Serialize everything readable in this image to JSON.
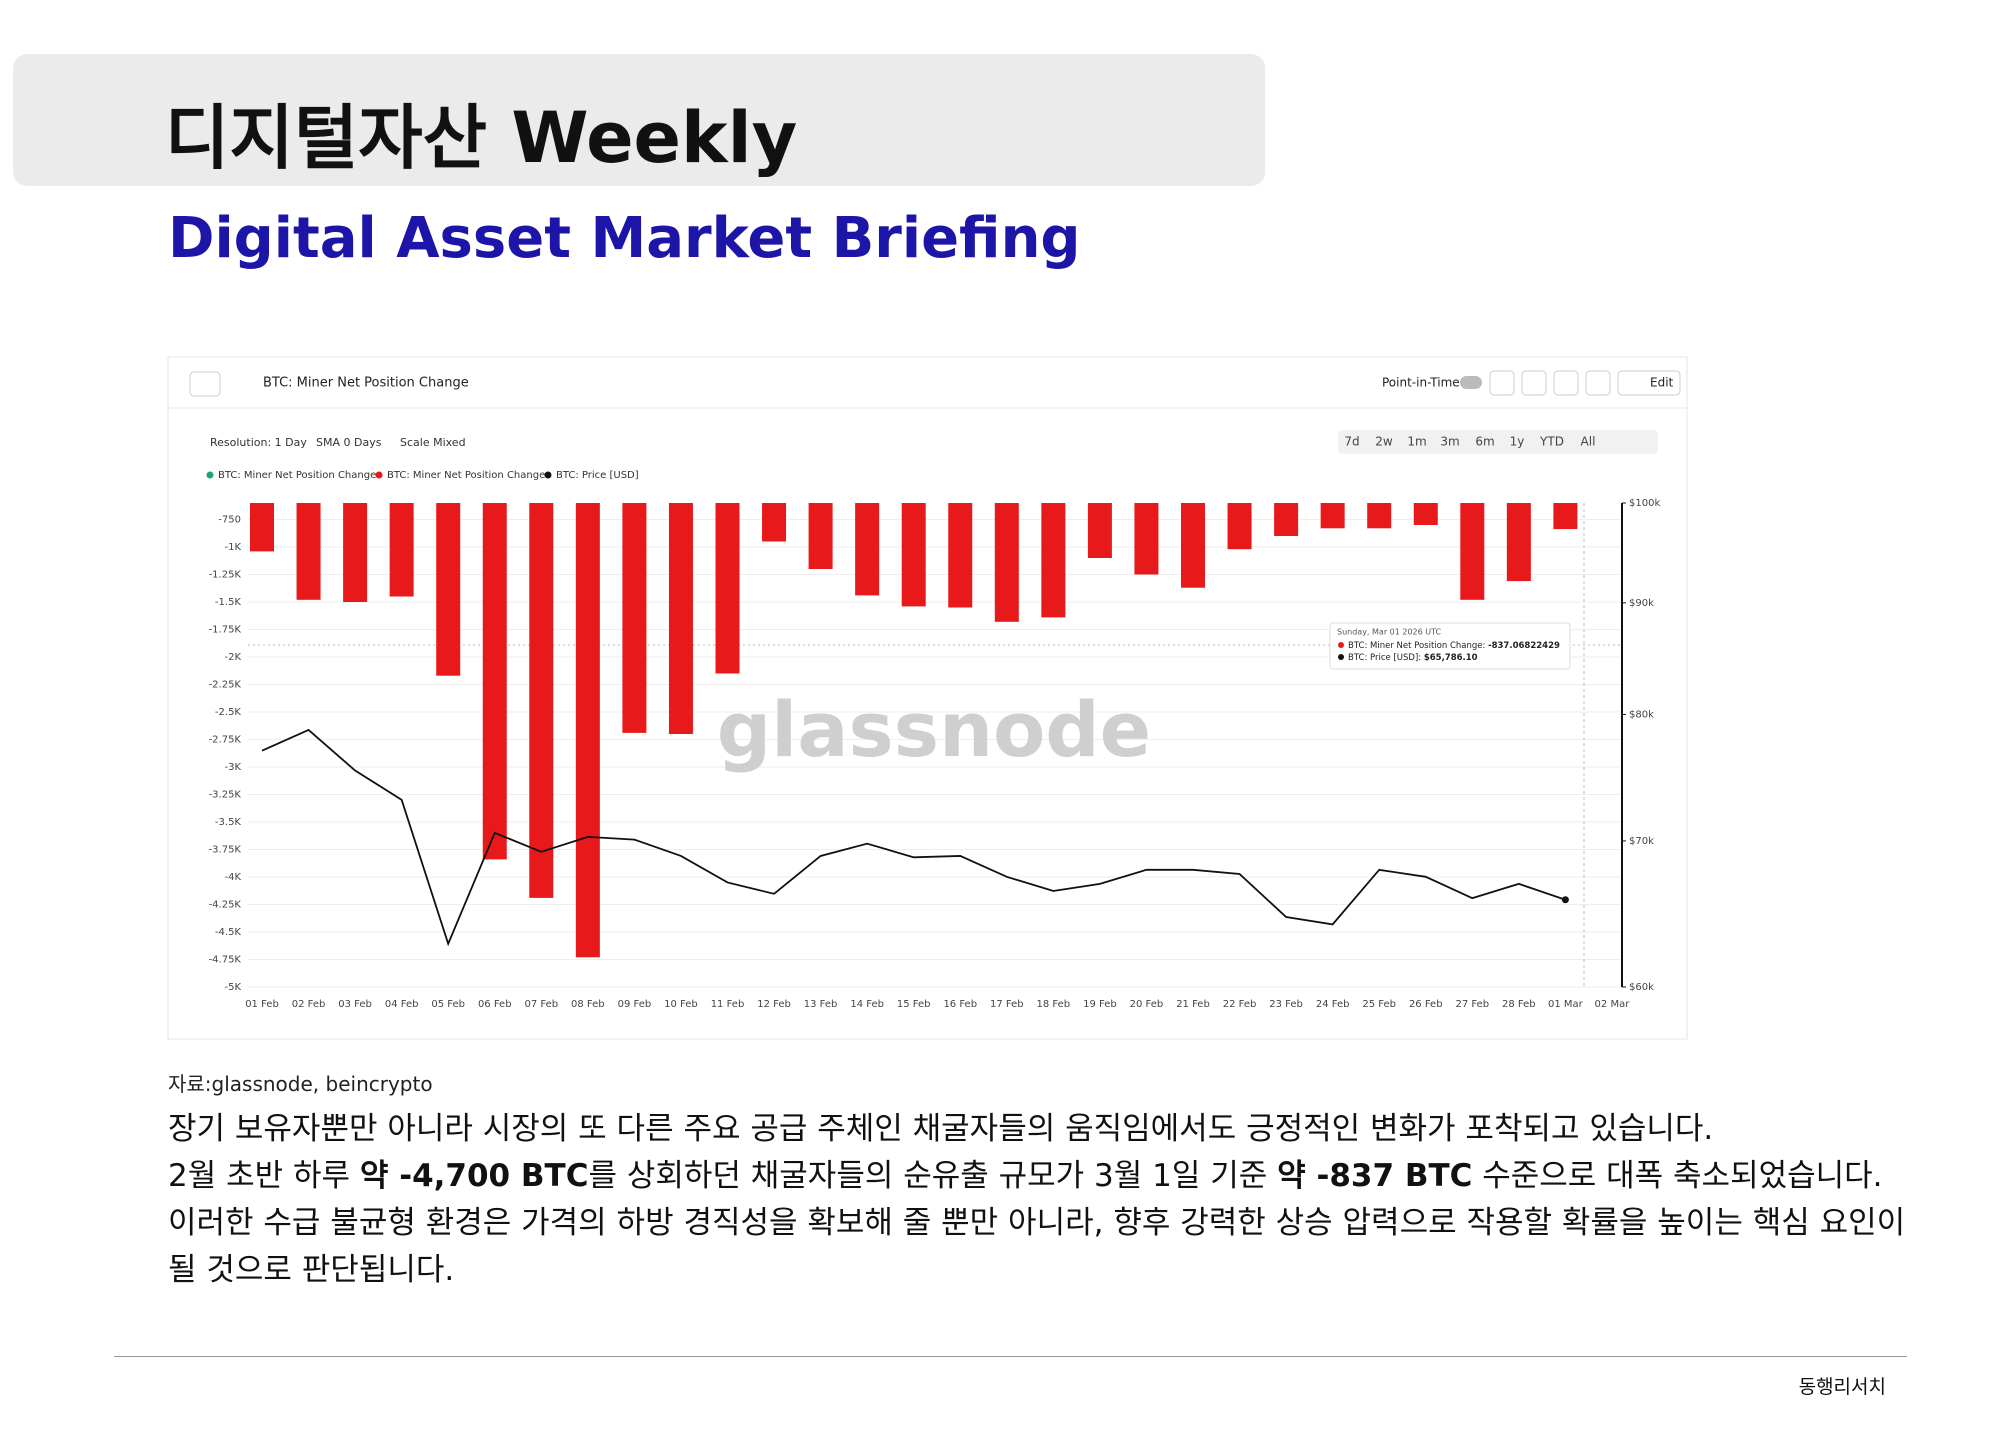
{
  "header": {
    "title": "디지털자산 Weekly",
    "subtitle": "Digital Asset Market Briefing"
  },
  "chart_data": {
    "type": "bar",
    "title": "BTC: Miner Net Position Change",
    "toolbar": {
      "point_in_time": "Point-in-Time",
      "edit": "Edit"
    },
    "controls": [
      "Resolution: 1 Day",
      "SMA 0 Days",
      "Scale Mixed"
    ],
    "ranges": [
      "7d",
      "2w",
      "1m",
      "3m",
      "6m",
      "1y",
      "YTD",
      "All"
    ],
    "legend": [
      {
        "name": "BTC: Miner Net Position Change",
        "color": "#1aa37a"
      },
      {
        "name": "BTC: Miner Net Position Change",
        "color": "#e8191a"
      },
      {
        "name": "BTC: Price [USD]",
        "color": "#111111"
      }
    ],
    "watermark": "glassnode",
    "categories": [
      "01 Feb",
      "02 Feb",
      "03 Feb",
      "04 Feb",
      "05 Feb",
      "06 Feb",
      "07 Feb",
      "08 Feb",
      "09 Feb",
      "10 Feb",
      "11 Feb",
      "12 Feb",
      "13 Feb",
      "14 Feb",
      "15 Feb",
      "16 Feb",
      "17 Feb",
      "18 Feb",
      "19 Feb",
      "20 Feb",
      "21 Feb",
      "22 Feb",
      "23 Feb",
      "24 Feb",
      "25 Feb",
      "26 Feb",
      "27 Feb",
      "28 Feb",
      "01 Mar",
      "02 Mar"
    ],
    "series": [
      {
        "name": "BTC: Miner Net Position Change",
        "color": "#e8191a",
        "values": [
          -1040,
          -1480,
          -1500,
          -1450,
          -2170,
          -3840,
          -4190,
          -4730,
          -2690,
          -2700,
          -2150,
          -950,
          -1200,
          -1440,
          -1540,
          -1550,
          -1680,
          -1640,
          -1100,
          -1250,
          -1370,
          -1020,
          -900,
          -830,
          -830,
          -800,
          -1480,
          -1310,
          -837.06822429,
          null
        ]
      },
      {
        "name": "BTC: Price [USD]",
        "color": "#111111",
        "axis": "y2",
        "values": [
          77000,
          78700,
          75400,
          73100,
          62800,
          70600,
          69200,
          70300,
          70100,
          68900,
          67000,
          66200,
          68900,
          69800,
          68800,
          68900,
          67400,
          66400,
          66900,
          67900,
          67900,
          67600,
          64600,
          64100,
          67900,
          67400,
          65900,
          66900,
          65786.1,
          null
        ]
      }
    ],
    "ylim": [
      -5000,
      -600
    ],
    "yticks": [
      -750,
      {
        "value": -1000,
        "label": "-1K"
      },
      {
        "value": -1250,
        "label": "-1.25K"
      },
      {
        "value": -1500,
        "label": "-1.5K"
      },
      {
        "value": -1750,
        "label": "-1.75K"
      },
      {
        "value": -2000,
        "label": "-2K"
      },
      {
        "value": -2250,
        "label": "-2.25K"
      },
      {
        "value": -2500,
        "label": "-2.5K"
      },
      {
        "value": -2750,
        "label": "-2.75K"
      },
      {
        "value": -3000,
        "label": "-3K"
      },
      {
        "value": -3250,
        "label": "-3.25K"
      },
      {
        "value": -3500,
        "label": "-3.5K"
      },
      {
        "value": -3750,
        "label": "-3.75K"
      },
      {
        "value": -4000,
        "label": "-4K"
      },
      {
        "value": -4250,
        "label": "-4.25K"
      },
      {
        "value": -4500,
        "label": "-4.5K"
      },
      {
        "value": -4750,
        "label": "-4.75K"
      },
      {
        "value": -5000,
        "label": "-5K"
      }
    ],
    "y2lim": [
      60000,
      100000
    ],
    "y2scale": "log",
    "y2ticks": [
      {
        "value": 100000,
        "label": "$100k"
      },
      {
        "value": 90000,
        "label": "$90k"
      },
      {
        "value": 80000,
        "label": "$80k"
      },
      {
        "value": 70000,
        "label": "$70k"
      },
      {
        "value": 60000,
        "label": "$60k"
      }
    ],
    "grid": true,
    "tooltip": {
      "date": "Sunday, Mar 01 2026 UTC",
      "items": [
        {
          "label": "BTC: Miner Net Position Change: ",
          "value": "-837.06822429",
          "color": "#e8191a"
        },
        {
          "label": "BTC: Price [USD]: ",
          "value": "$65,786.10",
          "color": "#111111"
        }
      ]
    }
  },
  "source": "자료:glassnode, beincrypto",
  "body": [
    [
      {
        "text": "장기 보유자뿐만 아니라 시장의 또 다른 주요 공급 주체인 채굴자들의 움직임에서도 긍정적인 변화가 포착되고 있습니다."
      }
    ],
    [
      {
        "text": "2월 초반 하루 "
      },
      {
        "text": "약 -4,700 BTC",
        "bold": true
      },
      {
        "text": "를 상회하던 채굴자들의 순유출 규모가 3월 1일 기준 "
      },
      {
        "text": "약 -837 BTC",
        "bold": true
      },
      {
        "text": " 수준으로 대폭 축소되었습니다."
      }
    ],
    [
      {
        "text": "이러한 수급 불균형 환경은 가격의 하방 경직성을 확보해 줄 뿐만 아니라, 향후 강력한 상승 압력으로 작용할 확률을 높이는 핵심 요인이 될 것으로 판단됩니다."
      }
    ]
  ],
  "footer": "동행리서치"
}
